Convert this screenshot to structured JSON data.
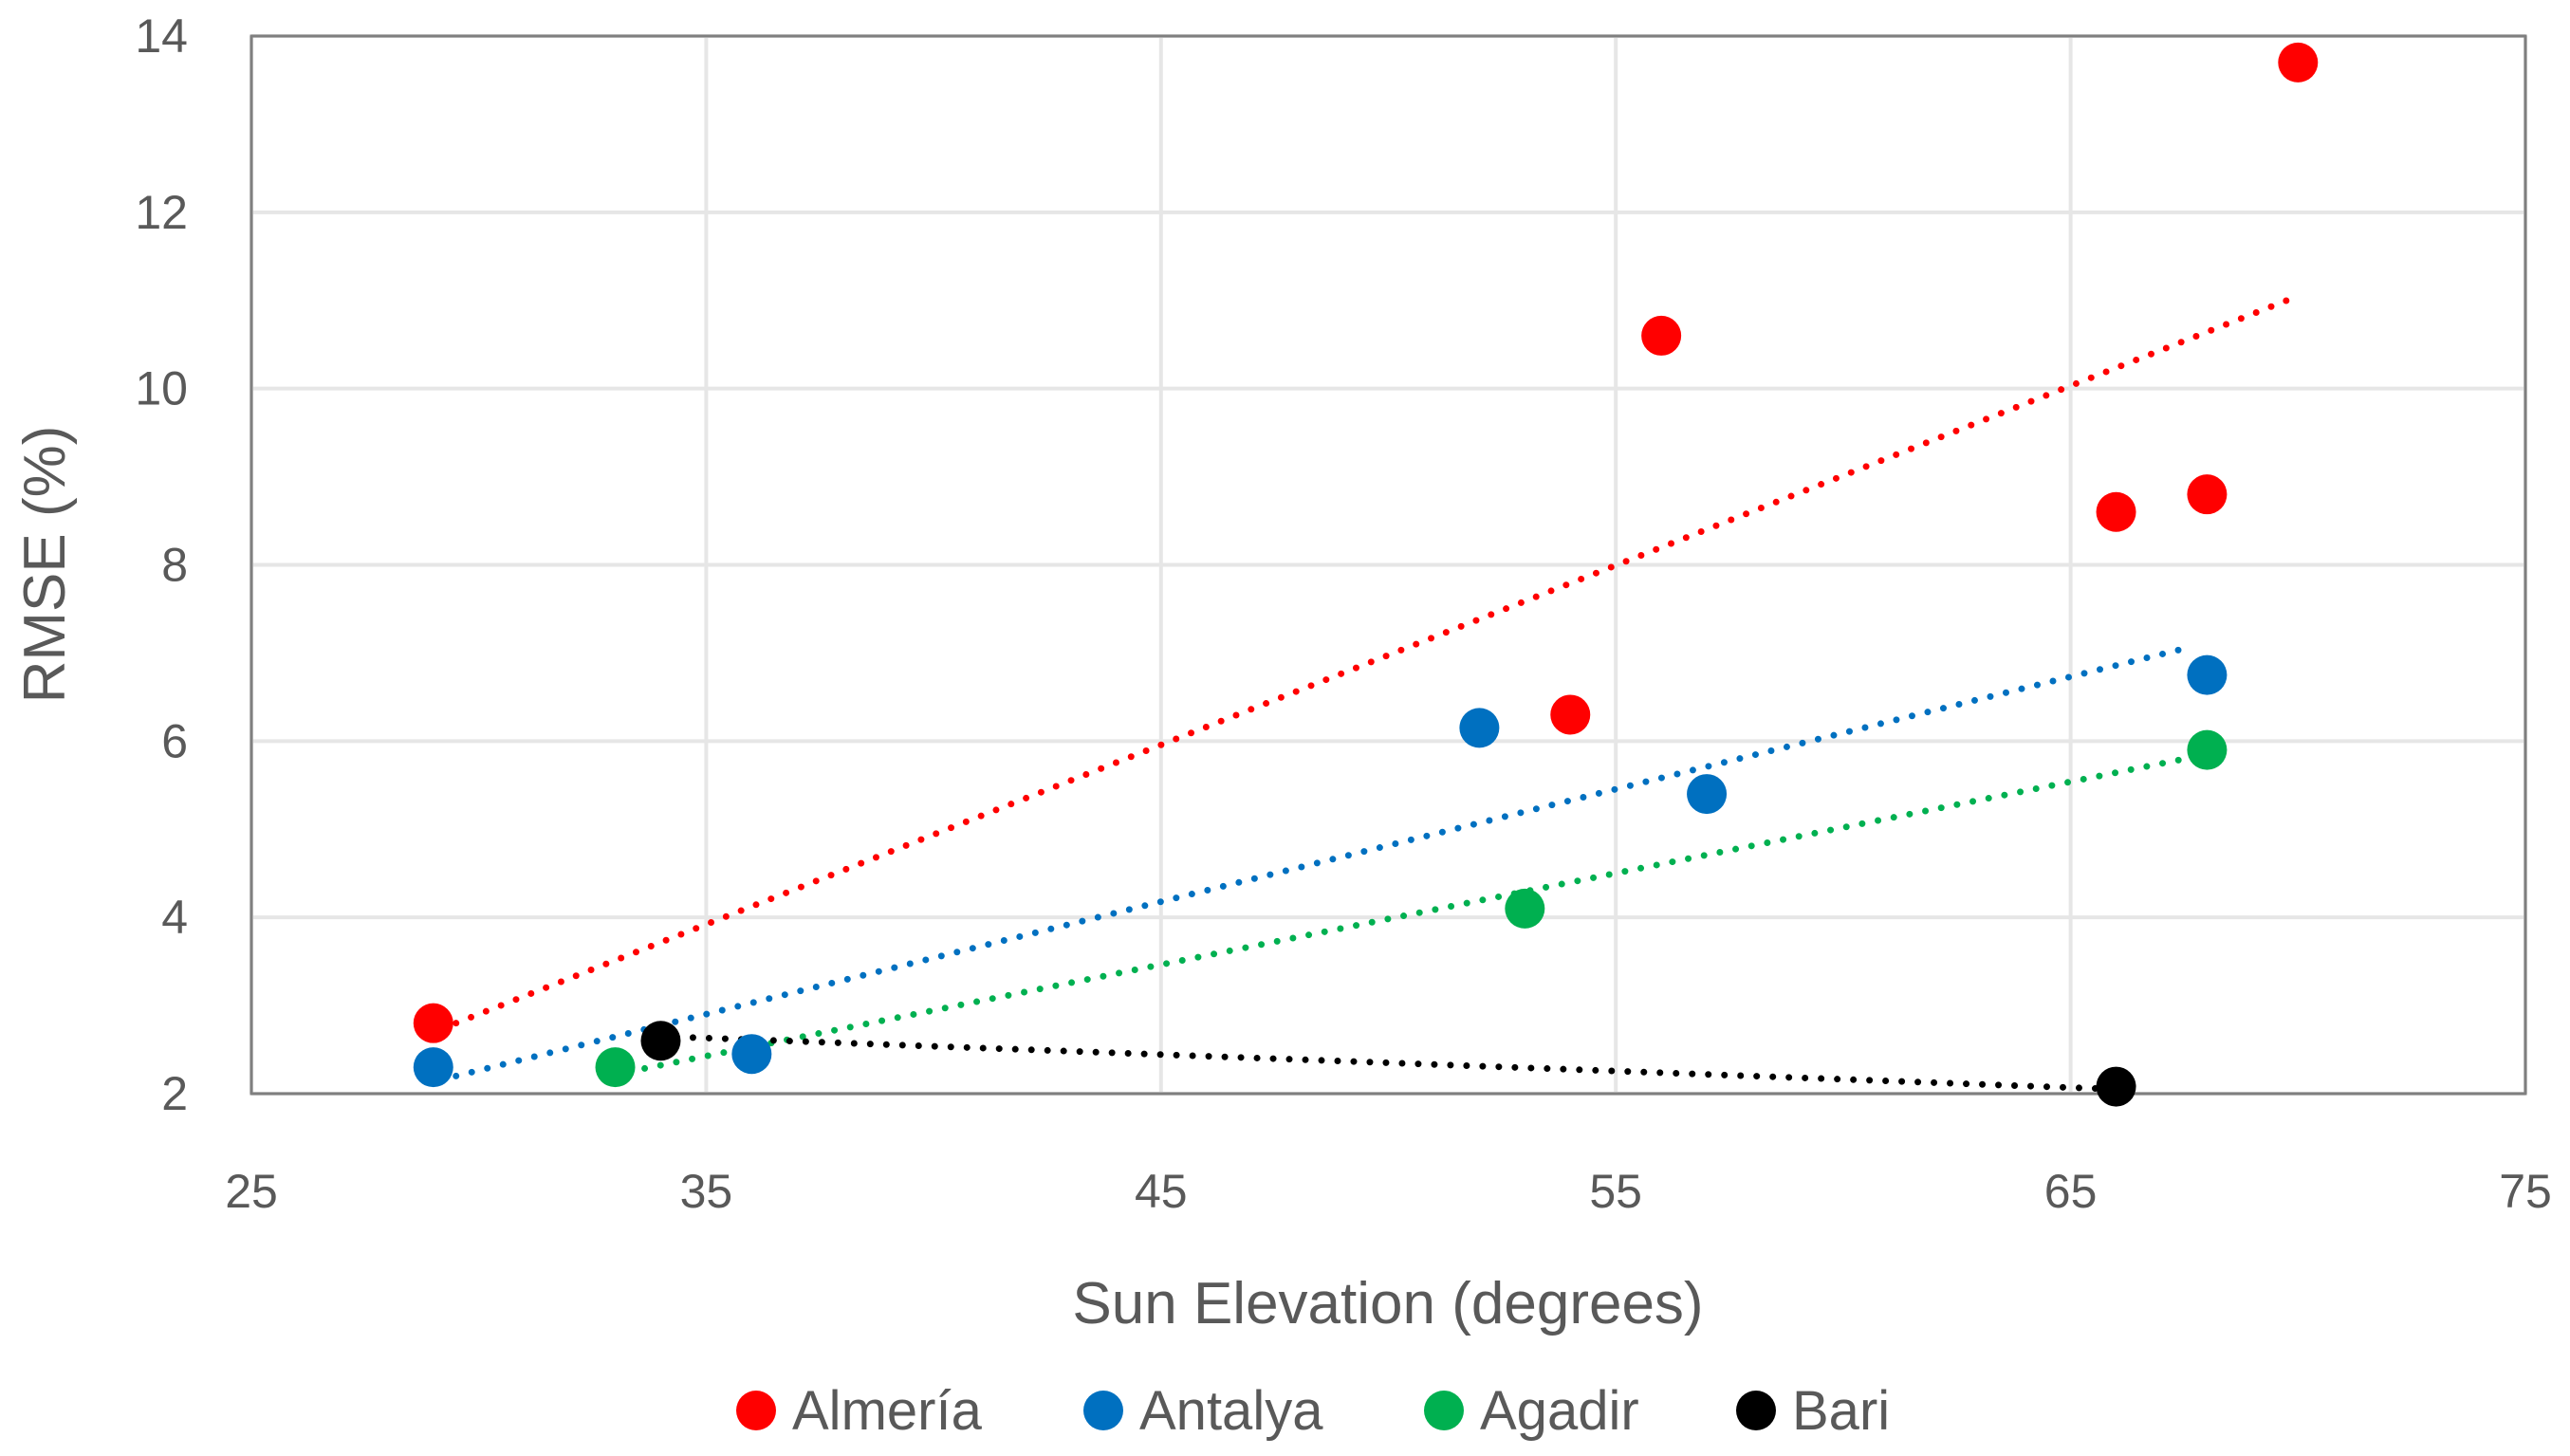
{
  "chart_data": {
    "type": "scatter",
    "title": "",
    "xlabel": "Sun Elevation (degrees)",
    "ylabel": "RMSE (%)",
    "xlim": [
      25,
      75
    ],
    "ylim": [
      2,
      14
    ],
    "xticks": [
      25,
      35,
      45,
      55,
      65,
      75
    ],
    "yticks": [
      2,
      4,
      6,
      8,
      10,
      12,
      14
    ],
    "grid": true,
    "legend_position": "bottom",
    "series": [
      {
        "name": "Almería",
        "color": "#ff0000",
        "points": [
          {
            "x": 29,
            "y": 2.8
          },
          {
            "x": 54,
            "y": 6.3
          },
          {
            "x": 56,
            "y": 10.6
          },
          {
            "x": 66,
            "y": 8.6
          },
          {
            "x": 68,
            "y": 8.8
          },
          {
            "x": 70,
            "y": 13.7
          }
        ],
        "trendline": {
          "style": "dotted",
          "from": {
            "x": 29.5,
            "y": 2.8
          },
          "to": {
            "x": 70,
            "y": 11.05
          }
        }
      },
      {
        "name": "Antalya",
        "color": "#0070c0",
        "points": [
          {
            "x": 29,
            "y": 2.3
          },
          {
            "x": 36,
            "y": 2.45
          },
          {
            "x": 52,
            "y": 6.15
          },
          {
            "x": 57,
            "y": 5.4
          },
          {
            "x": 68,
            "y": 6.75
          }
        ],
        "trendline": {
          "style": "dotted",
          "from": {
            "x": 29.5,
            "y": 2.2
          },
          "to": {
            "x": 67.5,
            "y": 7.05
          }
        }
      },
      {
        "name": "Agadir",
        "color": "#00b050",
        "points": [
          {
            "x": 33,
            "y": 2.3
          },
          {
            "x": 53,
            "y": 4.1
          },
          {
            "x": 68,
            "y": 5.9
          }
        ],
        "trendline": {
          "style": "dotted",
          "from": {
            "x": 33.3,
            "y": 2.25
          },
          "to": {
            "x": 68,
            "y": 5.85
          }
        }
      },
      {
        "name": "Bari",
        "color": "#000000",
        "points": [
          {
            "x": 34,
            "y": 2.6
          },
          {
            "x": 66,
            "y": 2.08
          }
        ],
        "trendline": {
          "style": "dotted",
          "from": {
            "x": 34,
            "y": 2.65
          },
          "to": {
            "x": 66,
            "y": 2.05
          }
        }
      }
    ]
  }
}
